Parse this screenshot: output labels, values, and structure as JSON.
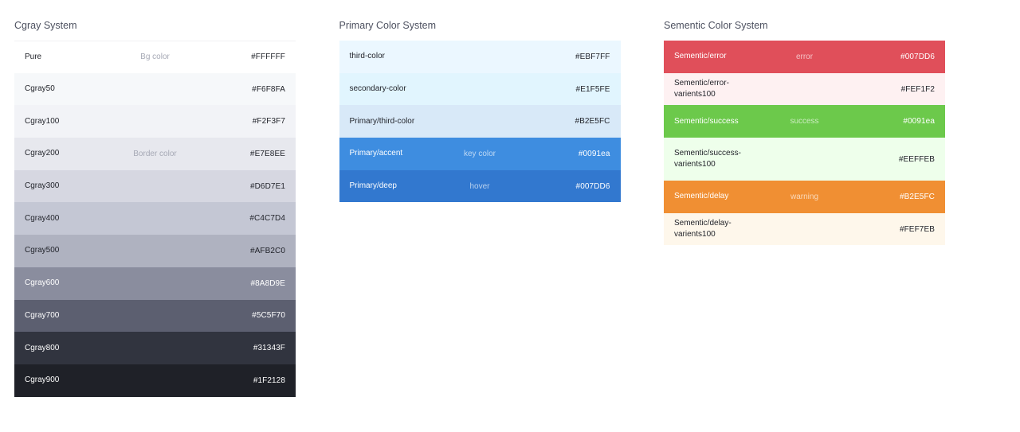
{
  "panels": [
    {
      "title": "Cgray System",
      "rows": [
        {
          "name": "Pure",
          "hint": "Bg color",
          "hex": "#FFFFFF",
          "bg": "#FFFFFF",
          "light": false
        },
        {
          "name": "Cgray50",
          "hint": "",
          "hex": "#F6F8FA",
          "bg": "#F6F8FA",
          "light": false
        },
        {
          "name": "Cgray100",
          "hint": "",
          "hex": "#F2F3F7",
          "bg": "#F2F3F7",
          "light": false
        },
        {
          "name": "Cgray200",
          "hint": "Border color",
          "hex": "#E7E8EE",
          "bg": "#E7E8EE",
          "light": false
        },
        {
          "name": "Cgray300",
          "hint": "",
          "hex": "#D6D7E1",
          "bg": "#D6D7E1",
          "light": false
        },
        {
          "name": "Cgray400",
          "hint": "",
          "hex": "#C4C7D4",
          "bg": "#C4C7D4",
          "light": false
        },
        {
          "name": "Cgray500",
          "hint": "",
          "hex": "#AFB2C0",
          "bg": "#AFB2C0",
          "light": false
        },
        {
          "name": "Cgray600",
          "hint": "",
          "hex": "#8A8D9E",
          "bg": "#8A8D9E",
          "light": true
        },
        {
          "name": "Cgray700",
          "hint": "",
          "hex": "#5C5F70",
          "bg": "#5C5F70",
          "light": true
        },
        {
          "name": "Cgray800",
          "hint": "",
          "hex": "#31343F",
          "bg": "#31343F",
          "light": true
        },
        {
          "name": "Cgray900",
          "hint": "",
          "hex": "#1F2128",
          "bg": "#1F2128",
          "light": true
        }
      ]
    },
    {
      "title": "Primary Color System",
      "rows": [
        {
          "name": "third-color",
          "hint": "",
          "hex": "#EBF7FF",
          "bg": "#EBF7FF",
          "light": false
        },
        {
          "name": "secondary-color",
          "hint": "",
          "hex": "#E1F5FE",
          "bg": "#E1F5FE",
          "light": false
        },
        {
          "name": "Primary/third-color",
          "hint": "",
          "hex": "#B2E5FC",
          "bg": "#D8E9F8",
          "light": false
        },
        {
          "name": "Primary/accent",
          "hint": "key color",
          "hex": "#0091ea",
          "bg": "#3E8DE0",
          "light": true
        },
        {
          "name": "Primary/deep",
          "hint": "hover",
          "hex": "#007DD6",
          "bg": "#3278CF",
          "light": true
        }
      ]
    },
    {
      "title": "Sementic Color System",
      "rows": [
        {
          "name": "Sementic/error",
          "hint": "error",
          "hex": "#007DD6",
          "bg": "#E04F5A",
          "light": true
        },
        {
          "name": "Sementic/error-varients100",
          "hint": "",
          "hex": "#FEF1F2",
          "bg": "#FEF1F2",
          "light": false
        },
        {
          "name": "Sementic/success",
          "hint": "success",
          "hex": "#0091ea",
          "bg": "#6CC94B",
          "light": true
        },
        {
          "name": "Sementic/success-varients100",
          "hint": "",
          "hex": "#EEFFEB",
          "bg": "#EEFFEB",
          "light": false,
          "tall": true
        },
        {
          "name": "Sementic/delay",
          "hint": "warning",
          "hex": "#B2E5FC",
          "bg": "#F08F33",
          "light": true
        },
        {
          "name": "Sementic/delay-varients100",
          "hint": "",
          "hex": "#FEF7EB",
          "bg": "#FEF7EB",
          "light": false
        }
      ]
    }
  ]
}
